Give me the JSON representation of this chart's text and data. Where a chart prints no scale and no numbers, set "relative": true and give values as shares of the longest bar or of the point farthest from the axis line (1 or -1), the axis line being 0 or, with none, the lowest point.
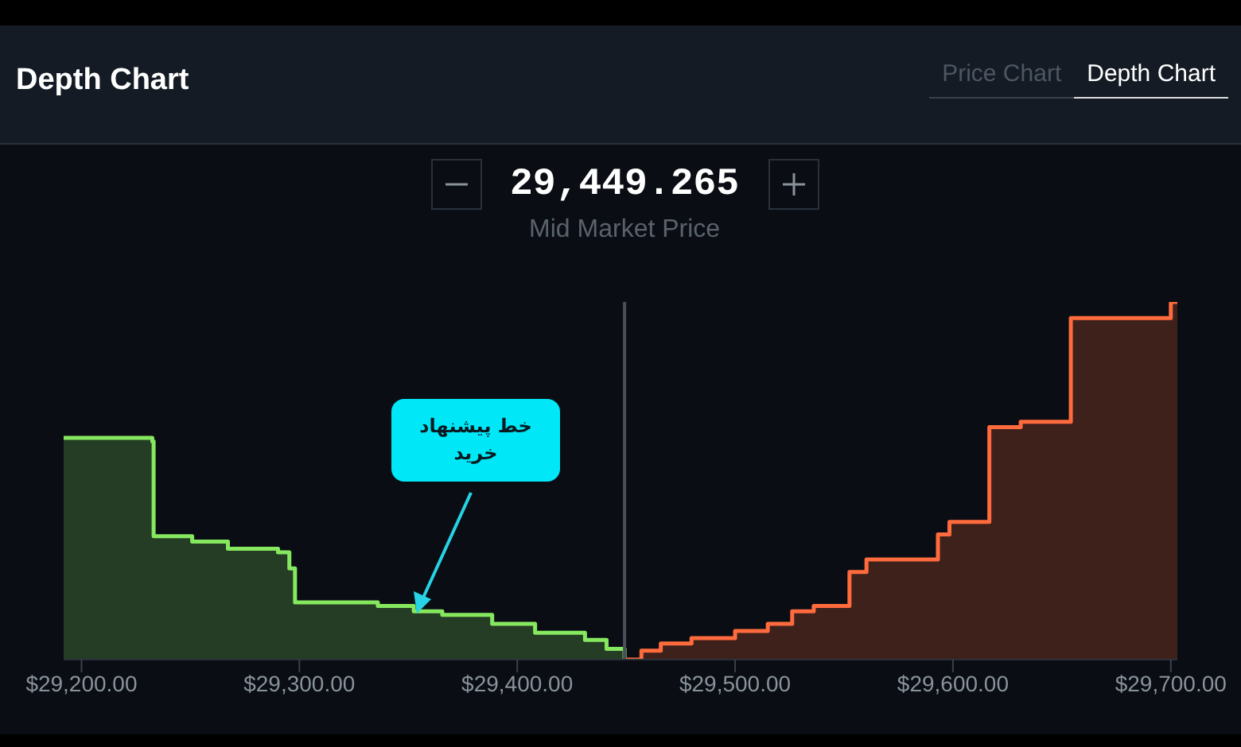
{
  "chart_data": {
    "type": "step",
    "title": "Depth Chart",
    "relative": true,
    "xlim": [
      29191.8,
      29703
    ],
    "xticks": [
      {
        "value": 29200,
        "label": "$29,200.00"
      },
      {
        "value": 29300,
        "label": "$29,300.00"
      },
      {
        "value": 29400,
        "label": "$29,400.00"
      },
      {
        "value": 29500,
        "label": "$29,500.00"
      },
      {
        "value": 29600,
        "label": "$29,600.00"
      },
      {
        "value": 29700,
        "label": "$29,700.00"
      }
    ],
    "series": [
      {
        "color": "#86e85f",
        "x": [
          29191.8,
          29232.5,
          29233.1,
          29250.8,
          29267.2,
          29290.2,
          29295.4,
          29298.0,
          29336.0,
          29352.5,
          29365.6,
          29388.5,
          29408.2,
          29431.1,
          29441.0,
          29449.265
        ],
        "values": [
          0.62,
          0.61,
          0.345,
          0.33,
          0.31,
          0.3,
          0.255,
          0.16,
          0.15,
          0.135,
          0.125,
          0.1,
          0.075,
          0.055,
          0.03,
          0
        ]
      },
      {
        "color": "#ff6b3d",
        "x": [
          29449.265,
          29457,
          29465.9,
          29480,
          29500,
          29515,
          29526.2,
          29536.1,
          29552.5,
          29560.3,
          29593.1,
          29598.4,
          29616.7,
          29631.1,
          29654.1,
          29700,
          29703
        ],
        "values": [
          0,
          0.025,
          0.045,
          0.06,
          0.08,
          0.1,
          0.135,
          0.15,
          0.245,
          0.28,
          0.35,
          0.385,
          0.65,
          0.665,
          0.955,
          1,
          1
        ]
      }
    ],
    "ref_lines": [
      {
        "axis": "x",
        "value": 29449.265,
        "label": "Mid Market Price",
        "color": "#4a505a"
      }
    ],
    "annotations": [
      "Price Chart",
      "Depth Chart",
      "خط پیشنهاد خرید"
    ],
    "subtitle": "29,449.265",
    "grid": false,
    "legend": false
  }
}
